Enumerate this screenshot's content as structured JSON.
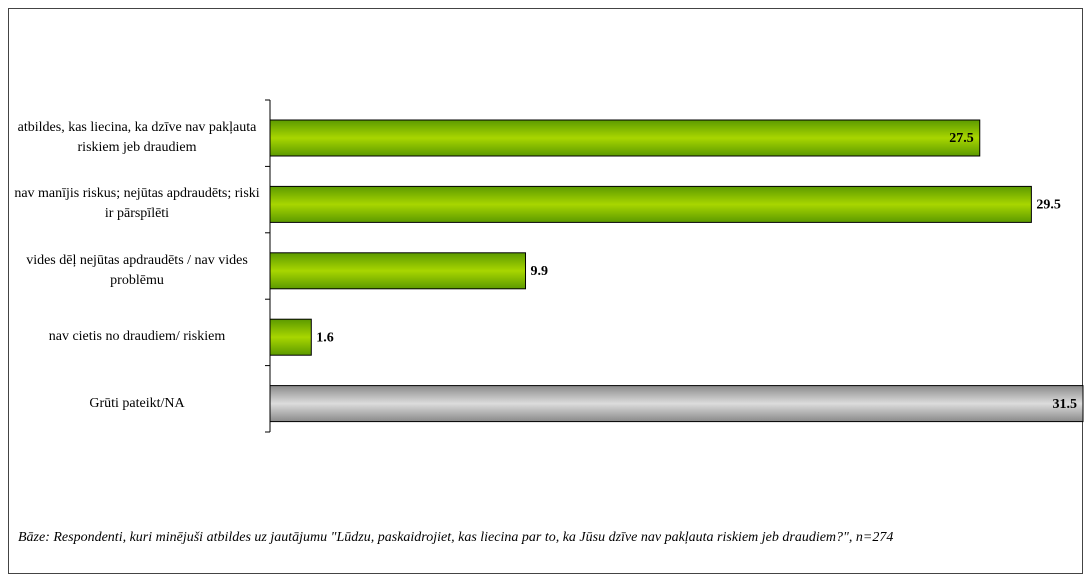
{
  "chart_data": {
    "type": "bar",
    "orientation": "horizontal",
    "categories": [
      "atbildes, kas liecina, ka dzīve nav pakļauta riskiem jeb draudiem",
      "nav manījis riskus; nejūtas apdraudēts; riski ir pārspīlēti",
      "vides dēļ nejūtas apdraudēts / nav vides problēmu",
      "nav cietis no draudiem/ riskiem",
      "Grūti pateikt/NA"
    ],
    "values": [
      27.5,
      29.5,
      9.9,
      1.6,
      31.5
    ],
    "colors": [
      "green",
      "green",
      "green",
      "green",
      "gray"
    ],
    "xlim": [
      0,
      31.5
    ],
    "footnote": "Bāze: Respondenti, kuri minējuši atbildes uz jautājumu \"Lūdzu, paskaidrojiet, kas liecina par to, ka Jūsu dzīve nav pakļauta riskiem jeb draudiem?\", n=274"
  }
}
